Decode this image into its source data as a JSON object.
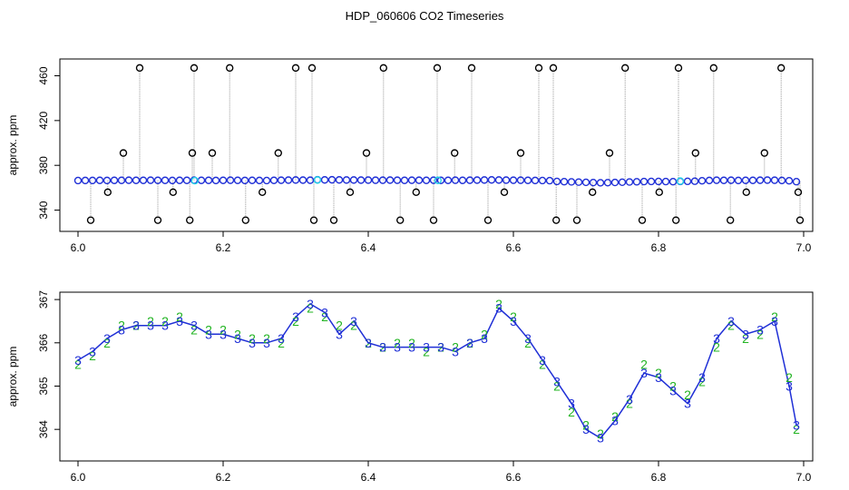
{
  "title": "HDP_060606 CO2 Timeseries",
  "chart_data": [
    {
      "type": "scatter",
      "ylabel": "approx. ppm",
      "xlim": [
        5.975,
        7.0125
      ],
      "ylim": [
        321,
        475
      ],
      "xticks": [
        {
          "value": 6.0,
          "label": "6.0"
        },
        6.2,
        6.4,
        6.6,
        6.8,
        {
          "value": 7.0,
          "label": "7.0"
        }
      ],
      "yticks": [
        340,
        380,
        420,
        460
      ],
      "series": [
        {
          "color": "#000000",
          "line_color": "#9a9a9a",
          "drop_lines": true,
          "marker": "circle",
          "x": [
            6.0175,
            6.041,
            6.0625,
            6.085,
            6.11,
            6.131,
            6.154,
            6.1575,
            6.16,
            6.185,
            6.209,
            6.231,
            6.254,
            6.276,
            6.3,
            6.3225,
            6.325,
            6.3525,
            6.375,
            6.3975,
            6.421,
            6.444,
            6.466,
            6.49,
            6.495,
            6.519,
            6.5425,
            6.565,
            6.5875,
            6.61,
            6.635,
            6.655,
            6.659,
            6.6875,
            6.709,
            6.7325,
            6.754,
            6.7775,
            6.801,
            6.824,
            6.8275,
            6.851,
            6.876,
            6.899,
            6.921,
            6.946,
            6.969,
            6.9925,
            6.995
          ],
          "values": [
            331,
            356,
            391,
            467,
            331,
            356,
            331,
            391,
            467,
            391,
            467,
            331,
            356,
            391,
            467,
            467,
            331,
            331,
            356,
            391,
            467,
            331,
            356,
            331,
            467,
            391,
            467,
            331,
            356,
            391,
            467,
            467,
            331,
            331,
            356,
            391,
            467,
            331,
            356,
            331,
            467,
            391,
            467,
            331,
            356,
            391,
            467,
            356,
            331
          ]
        },
        {
          "color": "#1f2fd6",
          "marker": "circle",
          "x": [
            6.0,
            6.01,
            6.02,
            6.03,
            6.04,
            6.05,
            6.06,
            6.07,
            6.08,
            6.09,
            6.1,
            6.11,
            6.12,
            6.13,
            6.14,
            6.15,
            6.16,
            6.17,
            6.18,
            6.19,
            6.2,
            6.21,
            6.22,
            6.23,
            6.24,
            6.25,
            6.26,
            6.27,
            6.28,
            6.29,
            6.3,
            6.31,
            6.32,
            6.33,
            6.34,
            6.35,
            6.36,
            6.37,
            6.38,
            6.39,
            6.4,
            6.41,
            6.42,
            6.43,
            6.44,
            6.45,
            6.46,
            6.47,
            6.48,
            6.49,
            6.5,
            6.51,
            6.52,
            6.53,
            6.54,
            6.55,
            6.56,
            6.57,
            6.58,
            6.59,
            6.6,
            6.61,
            6.62,
            6.63,
            6.64,
            6.65,
            6.66,
            6.67,
            6.68,
            6.69,
            6.7,
            6.71,
            6.72,
            6.73,
            6.74,
            6.75,
            6.76,
            6.77,
            6.78,
            6.79,
            6.8,
            6.81,
            6.82,
            6.83,
            6.84,
            6.85,
            6.86,
            6.87,
            6.88,
            6.89,
            6.9,
            6.91,
            6.92,
            6.93,
            6.94,
            6.95,
            6.96,
            6.97,
            6.98,
            6.99
          ],
          "values": [
            366.4,
            366.5,
            366.5,
            366.6,
            366.5,
            366.6,
            366.6,
            366.7,
            366.6,
            366.6,
            366.7,
            366.6,
            366.6,
            366.5,
            366.6,
            366.6,
            366.7,
            366.6,
            366.6,
            366.5,
            366.6,
            366.7,
            366.6,
            366.5,
            366.6,
            366.5,
            366.4,
            366.6,
            366.7,
            366.8,
            366.9,
            366.8,
            366.7,
            367.1,
            367.0,
            367.1,
            367.0,
            366.9,
            366.9,
            366.8,
            366.8,
            366.7,
            366.7,
            366.8,
            366.7,
            366.6,
            366.7,
            366.7,
            366.6,
            366.7,
            366.6,
            366.6,
            366.7,
            366.6,
            366.7,
            366.8,
            366.9,
            367.0,
            366.9,
            366.8,
            366.7,
            366.7,
            366.6,
            366.5,
            366.4,
            366.3,
            365.6,
            365.4,
            365.2,
            365.0,
            364.8,
            364.6,
            364.4,
            364.5,
            364.7,
            364.9,
            365.1,
            365.3,
            365.5,
            365.6,
            365.6,
            365.5,
            365.4,
            365.6,
            365.7,
            365.8,
            366.2,
            366.5,
            366.7,
            366.6,
            366.7,
            366.5,
            366.6,
            366.6,
            366.7,
            366.8,
            366.7,
            366.5,
            366.2,
            365.4
          ]
        },
        {
          "color": "#22d3e6",
          "marker": "circle",
          "x": [
            6.161,
            6.33,
            6.496,
            6.83
          ],
          "values": [
            366.3,
            366.9,
            366.6,
            365.9
          ]
        }
      ]
    },
    {
      "type": "scatter",
      "ylabel": "approx. ppm",
      "xlim": [
        5.975,
        7.0125
      ],
      "ylim": [
        363.27,
        367.17
      ],
      "xticks": [
        {
          "value": 6.0,
          "label": "6.0"
        },
        6.2,
        6.4,
        6.6,
        6.8,
        {
          "value": 7.0,
          "label": "7.0"
        }
      ],
      "yticks": [
        364,
        365,
        366,
        367
      ],
      "series": [
        {
          "color": "#22b422",
          "marker": "2",
          "x": [
            6.0,
            6.02,
            6.04,
            6.06,
            6.08,
            6.1,
            6.12,
            6.14,
            6.16,
            6.18,
            6.2,
            6.22,
            6.24,
            6.26,
            6.28,
            6.3,
            6.32,
            6.34,
            6.36,
            6.38,
            6.4,
            6.42,
            6.44,
            6.46,
            6.48,
            6.5,
            6.52,
            6.54,
            6.56,
            6.58,
            6.6,
            6.62,
            6.64,
            6.66,
            6.68,
            6.7,
            6.72,
            6.74,
            6.76,
            6.78,
            6.8,
            6.82,
            6.84,
            6.86,
            6.88,
            6.9,
            6.92,
            6.94,
            6.96,
            6.98,
            6.99
          ],
          "values": [
            365.5,
            365.7,
            366.0,
            366.4,
            366.4,
            366.5,
            366.5,
            366.6,
            366.3,
            366.3,
            366.3,
            366.2,
            366.1,
            366.1,
            366.0,
            366.5,
            366.8,
            366.6,
            366.4,
            366.4,
            366.0,
            365.9,
            366.0,
            366.0,
            365.8,
            365.9,
            365.9,
            366.0,
            366.2,
            366.9,
            366.6,
            366.0,
            365.5,
            365.0,
            364.4,
            364.1,
            363.9,
            364.3,
            364.6,
            365.5,
            365.3,
            365.0,
            364.8,
            365.1,
            365.9,
            366.4,
            366.1,
            366.2,
            366.6,
            365.2,
            364.0
          ]
        },
        {
          "color": "#1f2fd6",
          "marker": "3",
          "line": true,
          "x": [
            6.0,
            6.02,
            6.04,
            6.06,
            6.08,
            6.1,
            6.12,
            6.14,
            6.16,
            6.18,
            6.2,
            6.22,
            6.24,
            6.26,
            6.28,
            6.3,
            6.32,
            6.34,
            6.36,
            6.38,
            6.4,
            6.42,
            6.44,
            6.46,
            6.48,
            6.5,
            6.52,
            6.54,
            6.56,
            6.58,
            6.6,
            6.62,
            6.64,
            6.66,
            6.68,
            6.7,
            6.72,
            6.74,
            6.76,
            6.78,
            6.8,
            6.82,
            6.84,
            6.86,
            6.88,
            6.9,
            6.92,
            6.94,
            6.96,
            6.98,
            6.99
          ],
          "values": [
            365.6,
            365.8,
            366.1,
            366.3,
            366.4,
            366.4,
            366.4,
            366.5,
            366.4,
            366.2,
            366.2,
            366.1,
            366.0,
            366.0,
            366.1,
            366.6,
            366.9,
            366.7,
            366.2,
            366.5,
            366.0,
            365.9,
            365.9,
            365.9,
            365.9,
            365.9,
            365.8,
            366.0,
            366.1,
            366.8,
            366.5,
            366.1,
            365.6,
            365.1,
            364.6,
            364.0,
            363.8,
            364.2,
            364.7,
            365.3,
            365.2,
            364.9,
            364.6,
            365.2,
            366.1,
            366.5,
            366.2,
            366.3,
            366.5,
            365.0,
            364.1
          ]
        }
      ]
    }
  ]
}
